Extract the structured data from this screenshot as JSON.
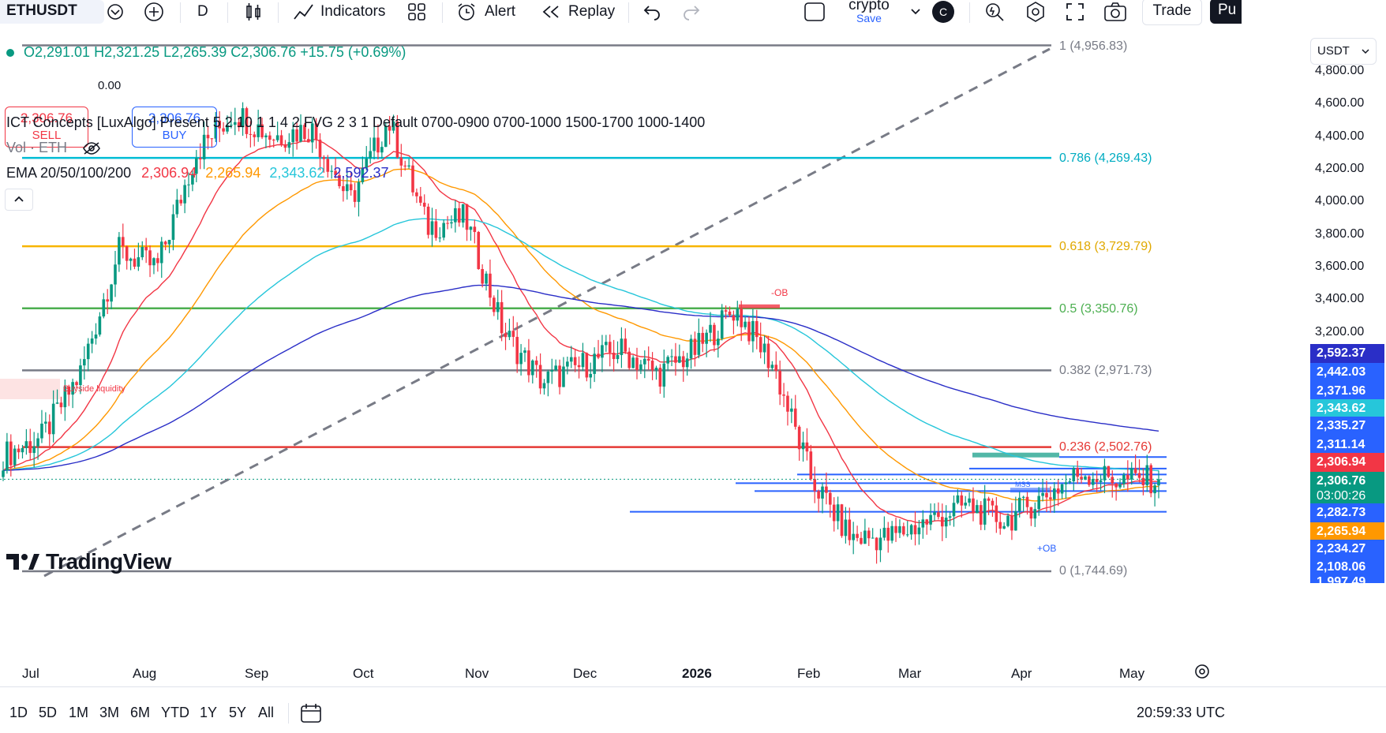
{
  "toolbar": {
    "symbol": "ETHUSDT",
    "interval": "D",
    "indicators_label": "Indicators",
    "alert_label": "Alert",
    "replay_label": "Replay",
    "layout_name": "crypto",
    "layout_save": "Save",
    "avatar_letter": "C",
    "trade_label": "Trade",
    "publish_label": "Pu"
  },
  "legend": {
    "ohlc": "O2,291.01 H2,321.25 L2,265.39 C2,306.76 +15.75 (+0.69%)",
    "sell_price": "2,306.76",
    "sell_label": "SELL",
    "spread": "0.00",
    "buy_price": "2,306.76",
    "buy_label": "BUY",
    "indicator_ict": "ICT Concepts [LuxAlgo] Present 5 2 10 1 1 4 2 FVG 2 3 1 Default 0700-0900 0700-1000 1500-1700 1000-1400",
    "indicator_vol": "Vol · ETH",
    "ema_label": "EMA 20/50/100/200",
    "ema20": "2,306.94",
    "ema50": "2,265.94",
    "ema100": "2,343.62",
    "ema200": "2,592.37"
  },
  "currency": "USDT",
  "fib_levels": [
    {
      "label": "1 (4,956.83)",
      "price": 4956.83,
      "color": "#787b86"
    },
    {
      "label": "0.786 (4,269.43)",
      "price": 4269.43,
      "color": "#00bcd4"
    },
    {
      "label": "0.618 (3,729.79)",
      "price": 3729.79,
      "color": "#f7b500"
    },
    {
      "label": "0.5 (3,350.76)",
      "price": 3350.76,
      "color": "#4caf50"
    },
    {
      "label": "0.382 (2,971.73)",
      "price": 2971.73,
      "color": "#787b86"
    },
    {
      "label": "0.236 (2,502.76)",
      "price": 2502.76,
      "color": "#e53935"
    },
    {
      "label": "0 (1,744.69)",
      "price": 1744.69,
      "color": "#787b86"
    }
  ],
  "price_axis": [
    "4,800.00",
    "4,600.00",
    "4,400.00",
    "4,200.00",
    "4,000.00",
    "3,800.00",
    "3,600.00",
    "3,400.00",
    "3,200.00"
  ],
  "price_tags": [
    {
      "text": "2,592.37",
      "bg": "#2a2ec7"
    },
    {
      "text": "2,442.03",
      "bg": "#2962ff"
    },
    {
      "text": "2,371.96",
      "bg": "#2962ff"
    },
    {
      "text": "2,343.62",
      "bg": "#26c6da"
    },
    {
      "text": "2,335.27",
      "bg": "#2962ff"
    },
    {
      "text": "2,311.14",
      "bg": "#2962ff"
    },
    {
      "text": "2,306.94",
      "bg": "#f23645"
    },
    {
      "text": "2,306.76",
      "bg": "#089981"
    },
    {
      "text": "03:00:26",
      "bg": "#089981"
    },
    {
      "text": "2,282.73",
      "bg": "#2962ff"
    },
    {
      "text": "2,265.94",
      "bg": "#ff9800"
    },
    {
      "text": "2,234.27",
      "bg": "#2962ff"
    },
    {
      "text": "2,108.06",
      "bg": "#2962ff"
    },
    {
      "text": "1,997.49",
      "bg": "#2962ff"
    }
  ],
  "annotations": {
    "ob_bear": "-OB",
    "ob_bull": "+OB",
    "mss": "MSS",
    "buyside": "Buyside liquidity"
  },
  "time_axis": [
    "Jul",
    "Aug",
    "Sep",
    "Oct",
    "Nov",
    "Dec",
    "2026",
    "Feb",
    "Mar",
    "Apr",
    "May"
  ],
  "watermark": "TradingView",
  "bottom": {
    "ranges": [
      "1D",
      "5D",
      "1M",
      "3M",
      "6M",
      "YTD",
      "1Y",
      "5Y",
      "All"
    ],
    "clock": "20:59:33 UTC"
  },
  "chart_data": {
    "type": "candlestick",
    "symbol": "ETHUSDT",
    "interval": "D",
    "x_range": [
      "Jul",
      "May"
    ],
    "y_unit": "USDT",
    "ylim": [
      1744.69,
      4956.83
    ],
    "last": {
      "open": 2291.01,
      "high": 2321.25,
      "low": 2265.39,
      "close": 2306.76,
      "change": 15.75,
      "change_pct": 0.69
    },
    "close_approx": [
      {
        "x": "Jul",
        "y": 2450
      },
      {
        "x": "Jul",
        "y": 2560
      },
      {
        "x": "Jul",
        "y": 2950
      },
      {
        "x": "Aug",
        "y": 3700
      },
      {
        "x": "Aug",
        "y": 3600
      },
      {
        "x": "Aug",
        "y": 4300
      },
      {
        "x": "Sep",
        "y": 4550
      },
      {
        "x": "Sep",
        "y": 4400
      },
      {
        "x": "Sep",
        "y": 4450
      },
      {
        "x": "Oct",
        "y": 4000
      },
      {
        "x": "Oct",
        "y": 4500
      },
      {
        "x": "Oct",
        "y": 3850
      },
      {
        "x": "Nov",
        "y": 3900
      },
      {
        "x": "Nov",
        "y": 3200
      },
      {
        "x": "Nov",
        "y": 2900
      },
      {
        "x": "Dec",
        "y": 3000
      },
      {
        "x": "Dec",
        "y": 3100
      },
      {
        "x": "Dec",
        "y": 2950
      },
      {
        "x": "2026",
        "y": 3100
      },
      {
        "x": "2026",
        "y": 3350
      },
      {
        "x": "2026",
        "y": 3000
      },
      {
        "x": "Feb",
        "y": 2300
      },
      {
        "x": "Feb",
        "y": 1950
      },
      {
        "x": "Feb",
        "y": 1950
      },
      {
        "x": "Mar",
        "y": 2050
      },
      {
        "x": "Mar",
        "y": 2150
      },
      {
        "x": "Mar",
        "y": 2050
      },
      {
        "x": "Apr",
        "y": 2200
      },
      {
        "x": "Apr",
        "y": 2350
      },
      {
        "x": "May",
        "y": 2300
      },
      {
        "x": "May",
        "y": 2306.76
      }
    ]
  }
}
